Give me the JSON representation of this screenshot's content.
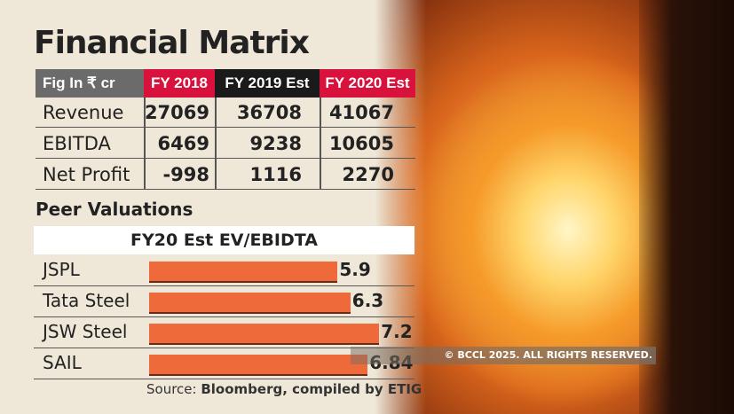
{
  "title": "Financial Matrix",
  "table": {
    "header": [
      "Fig In ₹ cr",
      "FY 2018",
      "FY 2019 Est",
      "FY 2020 Est"
    ],
    "header_colors": [
      "#6b6b6b",
      "#d8123c",
      "#1a1a1a",
      "#d8123c"
    ],
    "rows": [
      {
        "label": "Revenue",
        "values": [
          "27069",
          "36708",
          "41067"
        ]
      },
      {
        "label": "EBITDA",
        "values": [
          "6469",
          "9238",
          "10605"
        ]
      },
      {
        "label": "Net Profit",
        "values": [
          "-998",
          "1116",
          "2270"
        ]
      }
    ]
  },
  "chart_data": {
    "type": "bar",
    "section_title": "Peer Valuations",
    "title": "FY20 Est EV/EBIDTA",
    "categories": [
      "JSPL",
      "Tata Steel",
      "JSW Steel",
      "SAIL"
    ],
    "values": [
      5.9,
      6.3,
      7.2,
      6.84
    ],
    "value_labels": [
      "5.9",
      "6.3",
      "7.2",
      "6.84"
    ],
    "bar_color": "#ef6a3a",
    "orientation": "horizontal"
  },
  "source": {
    "prefix": "Source: ",
    "text": "Bloomberg, compiled by ETIG"
  },
  "copyright": "© BCCL 2025. ALL RIGHTS RESERVED."
}
